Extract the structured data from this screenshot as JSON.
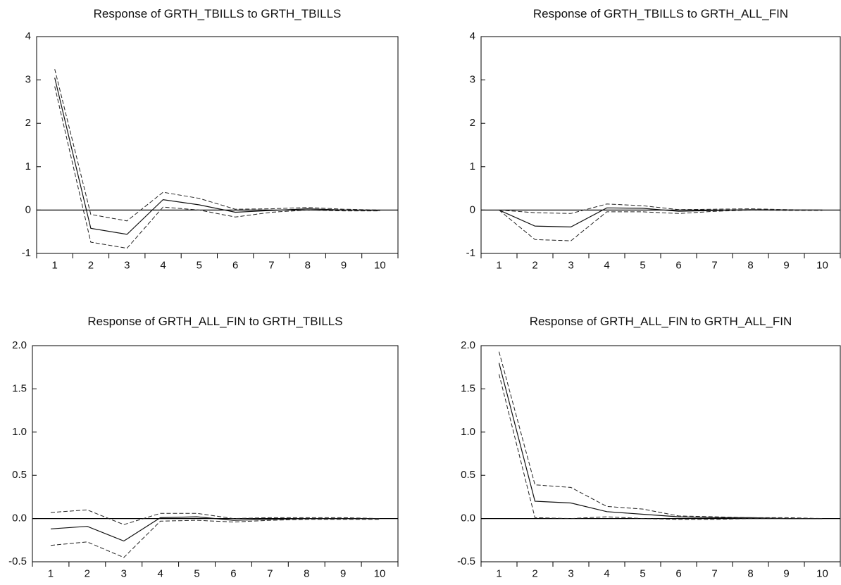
{
  "chart_data": [
    {
      "type": "line",
      "title": "Response of GRTH_TBILLS to GRTH_TBILLS",
      "xlabel": "",
      "ylabel": "",
      "x": [
        1,
        2,
        3,
        4,
        5,
        6,
        7,
        8,
        9,
        10
      ],
      "xticks": [
        "1",
        "2",
        "3",
        "4",
        "5",
        "6",
        "7",
        "8",
        "9",
        "10"
      ],
      "ylim": [
        -1,
        4
      ],
      "yticks": [
        "-1",
        "0",
        "1",
        "2",
        "3",
        "4"
      ],
      "grid": false,
      "zero_line": true,
      "series": [
        {
          "style": "solid",
          "values": [
            3.05,
            -0.42,
            -0.56,
            0.24,
            0.12,
            -0.05,
            -0.01,
            0.03,
            0.0,
            -0.01
          ]
        },
        {
          "style": "dashed",
          "values": [
            3.25,
            -0.1,
            -0.25,
            0.41,
            0.27,
            0.02,
            0.03,
            0.06,
            0.02,
            0.0
          ]
        },
        {
          "style": "dashed",
          "values": [
            2.85,
            -0.74,
            -0.88,
            0.07,
            0.0,
            -0.16,
            -0.05,
            0.0,
            -0.02,
            -0.02
          ]
        }
      ]
    },
    {
      "type": "line",
      "title": "Response of GRTH_TBILLS to GRTH_ALL_FIN",
      "xlabel": "",
      "ylabel": "",
      "x": [
        1,
        2,
        3,
        4,
        5,
        6,
        7,
        8,
        9,
        10
      ],
      "xticks": [
        "1",
        "2",
        "3",
        "4",
        "5",
        "6",
        "7",
        "8",
        "9",
        "10"
      ],
      "ylim": [
        -1,
        4
      ],
      "yticks": [
        "-1",
        "0",
        "1",
        "2",
        "3",
        "4"
      ],
      "grid": false,
      "zero_line": true,
      "series": [
        {
          "style": "solid",
          "values": [
            0.0,
            -0.37,
            -0.39,
            0.05,
            0.04,
            -0.03,
            -0.01,
            0.01,
            0.0,
            0.0
          ]
        },
        {
          "style": "dashed",
          "values": [
            0.0,
            -0.06,
            -0.08,
            0.14,
            0.1,
            0.01,
            0.02,
            0.03,
            0.01,
            0.0
          ]
        },
        {
          "style": "dashed",
          "values": [
            0.0,
            -0.68,
            -0.71,
            -0.04,
            -0.04,
            -0.08,
            -0.03,
            0.0,
            -0.01,
            -0.01
          ]
        }
      ]
    },
    {
      "type": "line",
      "title": "Response of GRTH_ALL_FIN to GRTH_TBILLS",
      "xlabel": "",
      "ylabel": "",
      "x": [
        1,
        2,
        3,
        4,
        5,
        6,
        7,
        8,
        9,
        10
      ],
      "xticks": [
        "1",
        "2",
        "3",
        "4",
        "5",
        "6",
        "7",
        "8",
        "9",
        "10"
      ],
      "ylim": [
        -0.5,
        2.0
      ],
      "yticks": [
        "-0.5",
        "0.0",
        "0.5",
        "1.0",
        "1.5",
        "2.0"
      ],
      "grid": false,
      "zero_line": true,
      "series": [
        {
          "style": "solid",
          "values": [
            -0.12,
            -0.09,
            -0.26,
            0.01,
            0.02,
            -0.02,
            -0.01,
            0.0,
            0.0,
            0.0
          ]
        },
        {
          "style": "dashed",
          "values": [
            0.07,
            0.1,
            -0.07,
            0.06,
            0.06,
            0.0,
            0.01,
            0.01,
            0.01,
            0.0
          ]
        },
        {
          "style": "dashed",
          "values": [
            -0.31,
            -0.27,
            -0.45,
            -0.03,
            -0.02,
            -0.04,
            -0.02,
            -0.01,
            -0.01,
            -0.01
          ]
        }
      ]
    },
    {
      "type": "line",
      "title": "Response of GRTH_ALL_FIN to GRTH_ALL_FIN",
      "xlabel": "",
      "ylabel": "",
      "x": [
        1,
        2,
        3,
        4,
        5,
        6,
        7,
        8,
        9,
        10
      ],
      "xticks": [
        "1",
        "2",
        "3",
        "4",
        "5",
        "6",
        "7",
        "8",
        "9",
        "10"
      ],
      "ylim": [
        -0.5,
        2.0
      ],
      "yticks": [
        "-0.5",
        "0.0",
        "0.5",
        "1.0",
        "1.5",
        "2.0"
      ],
      "grid": false,
      "zero_line": true,
      "series": [
        {
          "style": "solid",
          "values": [
            1.8,
            0.2,
            0.18,
            0.08,
            0.05,
            0.02,
            0.01,
            0.01,
            0.0,
            0.0
          ]
        },
        {
          "style": "dashed",
          "values": [
            1.93,
            0.39,
            0.36,
            0.14,
            0.11,
            0.03,
            0.02,
            0.01,
            0.01,
            0.0
          ]
        },
        {
          "style": "dashed",
          "values": [
            1.67,
            0.01,
            0.0,
            0.02,
            0.0,
            -0.01,
            -0.01,
            0.0,
            0.0,
            0.0
          ]
        }
      ]
    }
  ]
}
